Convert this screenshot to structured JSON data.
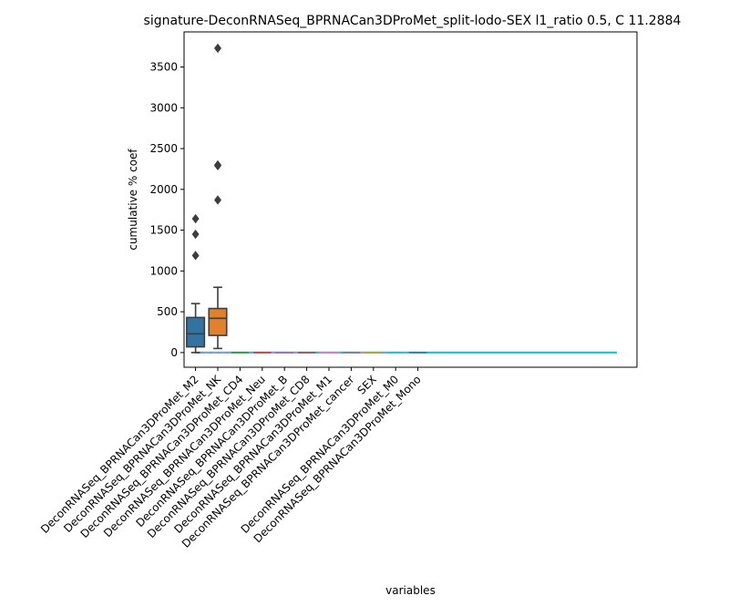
{
  "chart_data": {
    "type": "box",
    "title": "signature-DeconRNASeq_BPRNACan3DProMet_split-lodo-SEX l1_ratio 0.5, C 11.2884",
    "xlabel": "variables",
    "ylabel": "cumulative % coef",
    "ylim": [
      -180,
      3930
    ],
    "yticks": [
      0,
      500,
      1000,
      1500,
      2000,
      2500,
      3000,
      3500
    ],
    "categories": [
      "DeconRNASeq_BPRNACan3DProMet_M2",
      "DeconRNASeq_BPRNACan3DProMet_NK",
      "DeconRNASeq_BPRNACan3DProMet_CD4",
      "DeconRNASeq_BPRNACan3DProMet_Neu",
      "DeconRNASeq_BPRNACan3DProMet_B",
      "DeconRNASeq_BPRNACan3DProMet_CD8",
      "DeconRNASeq_BPRNACan3DProMet_M1",
      "DeconRNASeq_BPRNACan3DProMet_cancer",
      "SEX",
      "DeconRNASeq_BPRNACan3DProMet_M0",
      "DeconRNASeq_BPRNACan3DProMet_Mono"
    ],
    "boxes": [
      {
        "category": "DeconRNASeq_BPRNACan3DProMet_M2",
        "whisker_low": 0,
        "q1": 70,
        "median": 230,
        "q3": 430,
        "whisker_high": 600,
        "outliers": [
          1190,
          1450,
          1640
        ],
        "color": "#3274a1"
      },
      {
        "category": "DeconRNASeq_BPRNACan3DProMet_NK",
        "whisker_low": 50,
        "q1": 210,
        "median": 420,
        "q3": 540,
        "whisker_high": 800,
        "outliers": [
          1870,
          2290,
          2300,
          3730
        ],
        "color": "#e1812c"
      },
      {
        "category": "DeconRNASeq_BPRNACan3DProMet_CD4",
        "value": 0,
        "color": "#3a923a"
      },
      {
        "category": "DeconRNASeq_BPRNACan3DProMet_Neu",
        "value": 0,
        "color": "#c03d3e"
      },
      {
        "category": "DeconRNASeq_BPRNACan3DProMet_B",
        "value": 0,
        "color": "#9372b2"
      },
      {
        "category": "DeconRNASeq_BPRNACan3DProMet_CD8",
        "value": 0,
        "color": "#845b53"
      },
      {
        "category": "DeconRNASeq_BPRNACan3DProMet_M1",
        "value": 0,
        "color": "#d684bd"
      },
      {
        "category": "DeconRNASeq_BPRNACan3DProMet_cancer",
        "value": 0,
        "color": "#7f7f7f"
      },
      {
        "category": "SEX",
        "value": 0,
        "color": "#a9aa35"
      },
      {
        "category": "DeconRNASeq_BPRNACan3DProMet_M0",
        "value": 0,
        "color": "#2ebece"
      },
      {
        "category": "DeconRNASeq_BPRNACan3DProMet_Mono",
        "value": 0,
        "color": "#3274a1"
      }
    ],
    "baseline": {
      "value": 0,
      "color": "#2ebece"
    },
    "dashed_line": {
      "value": 0,
      "color": "#d684bd"
    },
    "grid": false,
    "legend": "none"
  }
}
